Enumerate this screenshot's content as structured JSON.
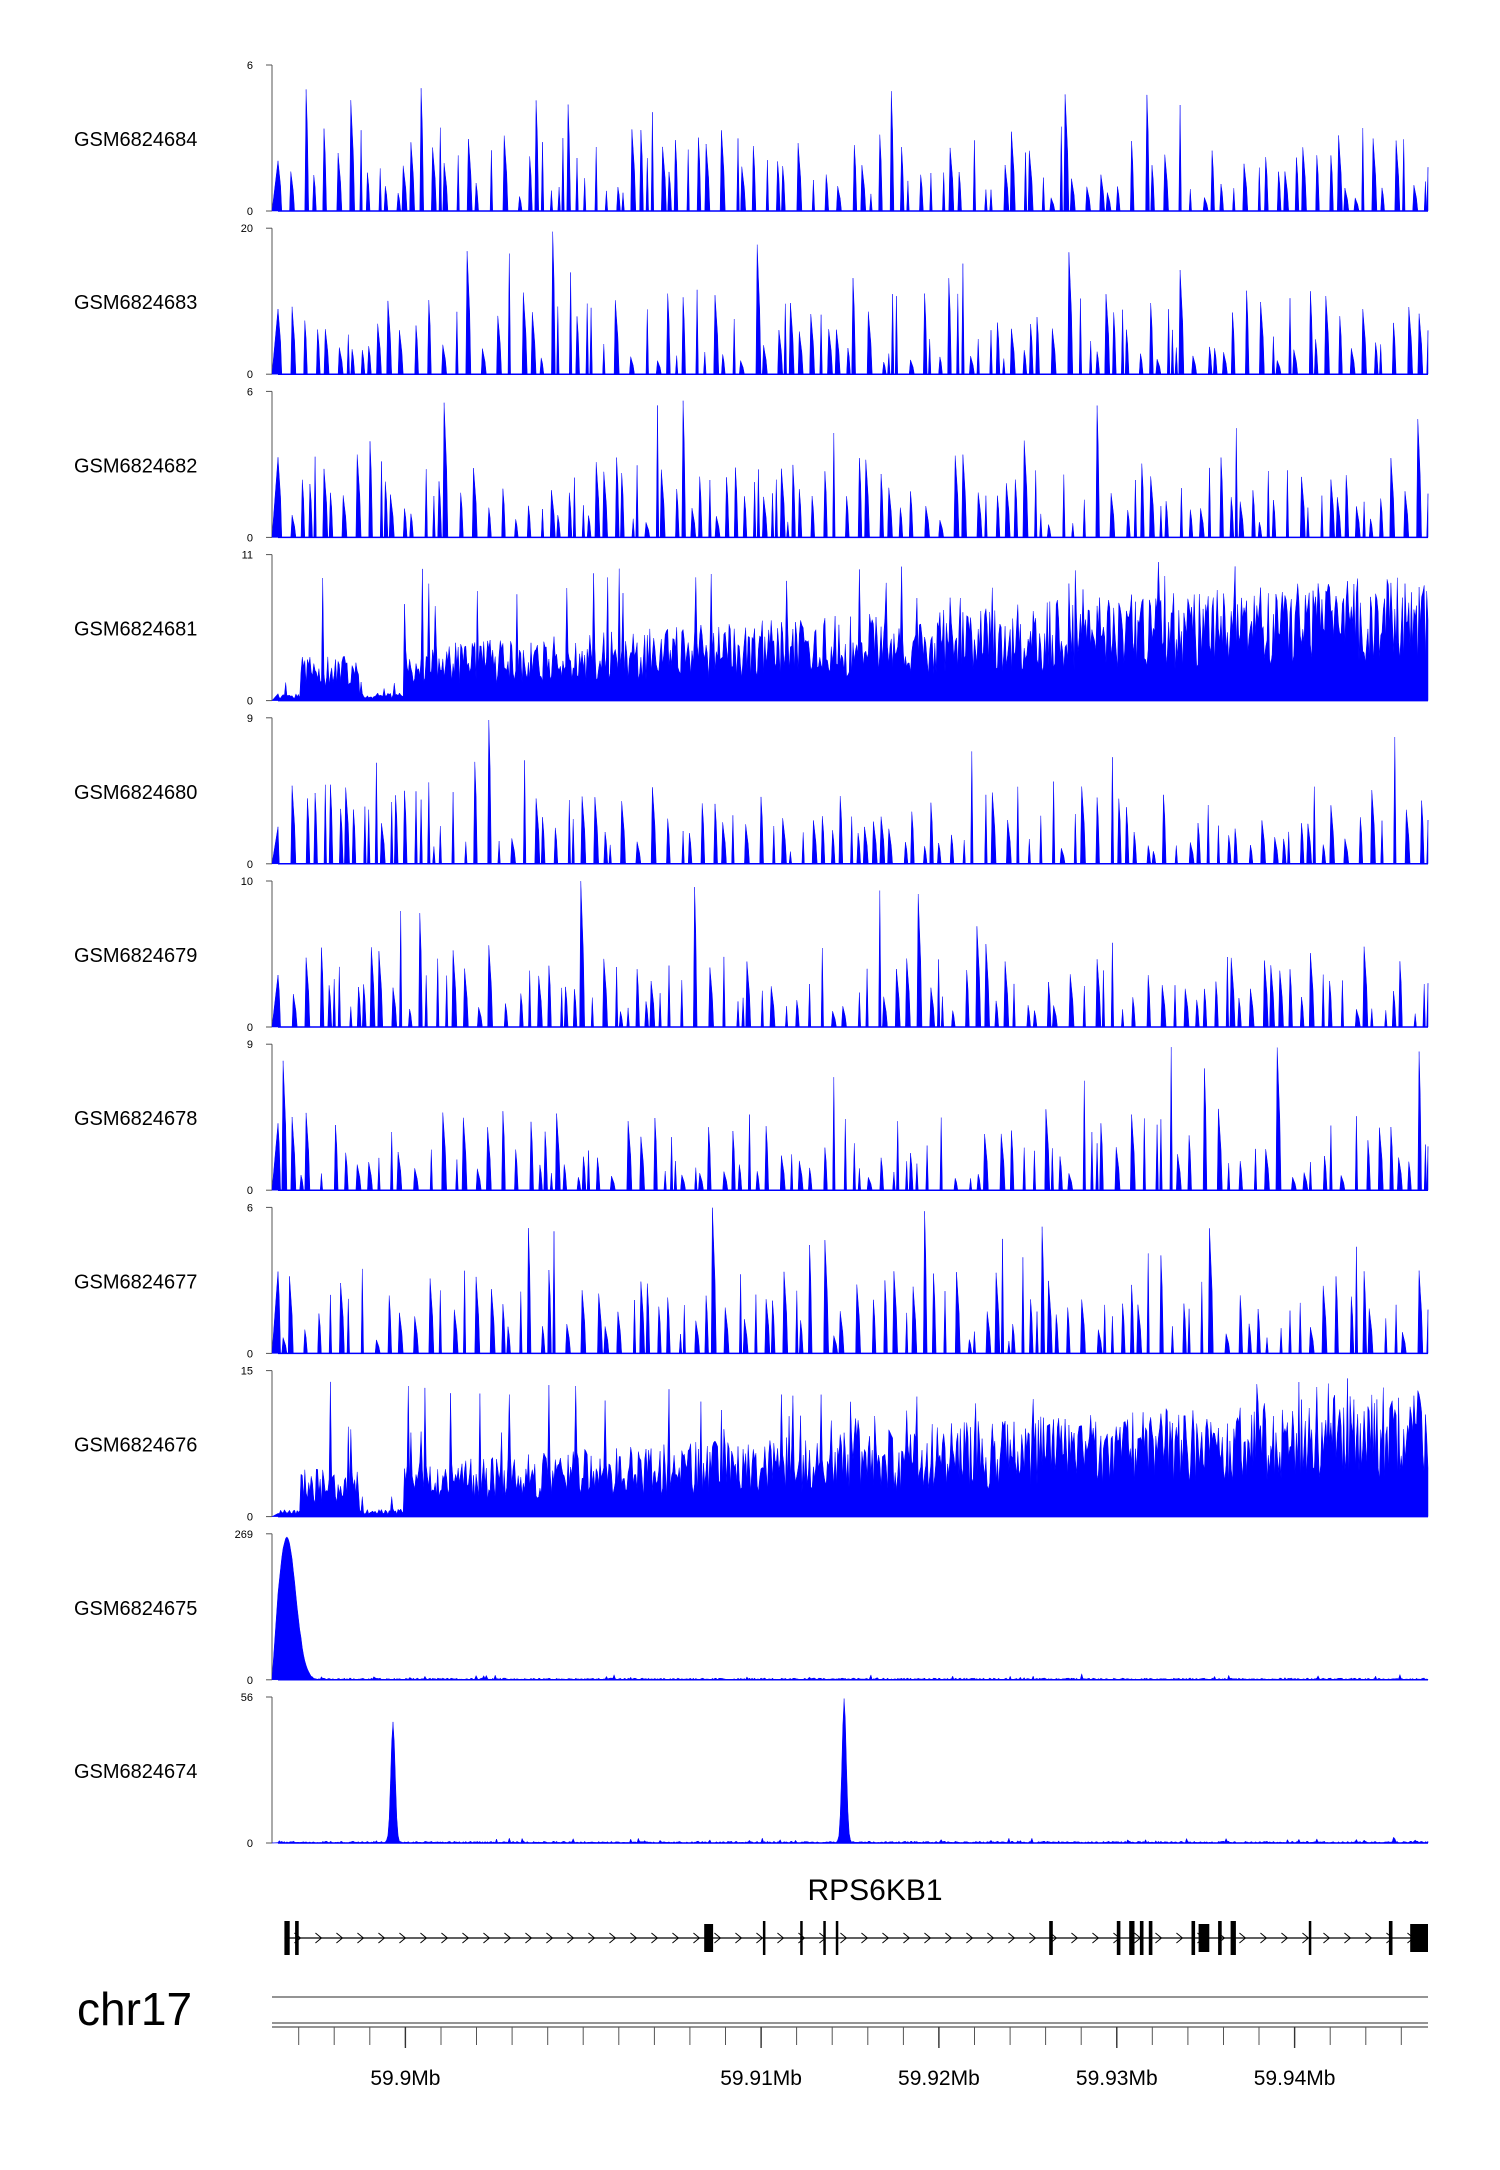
{
  "colors": {
    "signal": "#0000ff",
    "axis": "#333333",
    "gene": "#000000"
  },
  "chart_data": {
    "type": "area",
    "chromosome": "chr17",
    "region": [
      59.8825,
      59.9475
    ],
    "x_units": "Mb",
    "tracks": [
      {
        "name": "GSM6824684",
        "ylim": [
          0,
          6
        ],
        "ymax_label": "6",
        "ymin_label": "0",
        "profile": "sparse"
      },
      {
        "name": "GSM6824683",
        "ylim": [
          0,
          20
        ],
        "ymax_label": "20",
        "ymin_label": "0",
        "profile": "sparse"
      },
      {
        "name": "GSM6824682",
        "ylim": [
          0,
          6
        ],
        "ymax_label": "6",
        "ymin_label": "0",
        "profile": "sparse"
      },
      {
        "name": "GSM6824681",
        "ylim": [
          0,
          11
        ],
        "ymax_label": "11",
        "ymin_label": "0",
        "profile": "broad"
      },
      {
        "name": "GSM6824680",
        "ylim": [
          0,
          9
        ],
        "ymax_label": "9",
        "ymin_label": "0",
        "profile": "sparse"
      },
      {
        "name": "GSM6824679",
        "ylim": [
          0,
          10
        ],
        "ymax_label": "10",
        "ymin_label": "0",
        "profile": "sparse"
      },
      {
        "name": "GSM6824678",
        "ylim": [
          0,
          9
        ],
        "ymax_label": "9",
        "ymin_label": "0",
        "profile": "sparse"
      },
      {
        "name": "GSM6824677",
        "ylim": [
          0,
          6
        ],
        "ymax_label": "6",
        "ymin_label": "0",
        "profile": "sparse"
      },
      {
        "name": "GSM6824676",
        "ylim": [
          0,
          15
        ],
        "ymax_label": "15",
        "ymin_label": "0",
        "profile": "broad"
      },
      {
        "name": "GSM6824675",
        "ylim": [
          0,
          269
        ],
        "ymax_label": "269",
        "ymin_label": "0",
        "profile": "peaks",
        "peaks": [
          {
            "x": 59.883,
            "y": 262,
            "width": 0.0005
          }
        ]
      },
      {
        "name": "GSM6824674",
        "ylim": [
          0,
          56
        ],
        "ymax_label": "56",
        "ymin_label": "0",
        "profile": "peaks",
        "peaks": [
          {
            "x": 59.889,
            "y": 46,
            "width": 0.00012
          },
          {
            "x": 59.9145,
            "y": 55,
            "width": 0.00012
          }
        ]
      }
    ],
    "gene": {
      "name": "RPS6KB1",
      "start": 59.8832,
      "end": 59.9475,
      "strand": "+",
      "exons": [
        [
          59.8832,
          59.8835
        ],
        [
          59.8838,
          59.884
        ],
        [
          59.9068,
          59.9073
        ],
        [
          59.9101,
          59.9102
        ],
        [
          59.9122,
          59.9123
        ],
        [
          59.9135,
          59.9136
        ],
        [
          59.9142,
          59.9143
        ],
        [
          59.9262,
          59.9264
        ],
        [
          59.93,
          59.9302
        ],
        [
          59.9307,
          59.931
        ],
        [
          59.9313,
          59.9315
        ],
        [
          59.9318,
          59.932
        ],
        [
          59.9342,
          59.9344
        ],
        [
          59.9346,
          59.9352
        ],
        [
          59.9357,
          59.9359
        ],
        [
          59.9364,
          59.9367
        ],
        [
          59.9408,
          59.9409
        ],
        [
          59.9453,
          59.9455
        ],
        [
          59.9465,
          59.9475
        ]
      ]
    },
    "x_ticks": [
      {
        "value": 59.89,
        "label": "59.9Mb"
      },
      {
        "value": 59.91,
        "label": "59.91Mb"
      },
      {
        "value": 59.92,
        "label": "59.92Mb"
      },
      {
        "value": 59.93,
        "label": "59.93Mb"
      },
      {
        "value": 59.94,
        "label": "59.94Mb"
      }
    ],
    "minor_tick_step": 0.002
  }
}
